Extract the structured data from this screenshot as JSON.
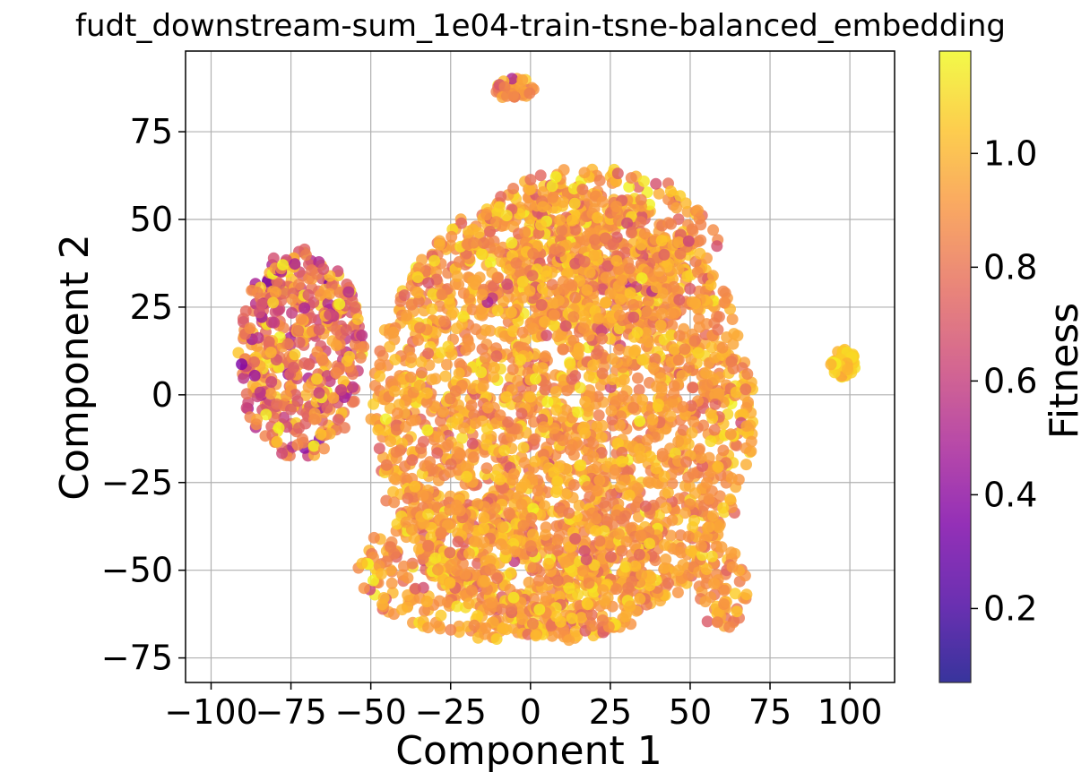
{
  "chart_data": {
    "type": "scatter",
    "title": "fudt_downstream-sum_1e04-train-tsne-balanced_embedding",
    "xlabel": "Component 1",
    "ylabel": "Component 2",
    "xlim": [
      -108,
      114
    ],
    "ylim": [
      -82,
      98
    ],
    "xticks": [
      -100,
      -75,
      -50,
      -25,
      0,
      25,
      50,
      75,
      100
    ],
    "xtick_labels": [
      "−100",
      "−75",
      "−50",
      "−25",
      "0",
      "25",
      "50",
      "75",
      "100"
    ],
    "yticks": [
      -75,
      -50,
      -25,
      0,
      25,
      50,
      75
    ],
    "ytick_labels": [
      "−75",
      "−50",
      "−25",
      "0",
      "25",
      "50",
      "75"
    ],
    "grid": true,
    "colorbar": {
      "label": "Fitness",
      "colormap": "plasma",
      "range": [
        0.07,
        1.18
      ],
      "ticks": [
        0.2,
        0.4,
        0.6,
        0.8,
        1.0
      ],
      "tick_labels": [
        "0.2",
        "0.4",
        "0.6",
        "0.8",
        "1.0"
      ]
    },
    "clusters": [
      {
        "cx": 10,
        "cy": -5,
        "rx": 60,
        "ry": 65,
        "n": 2600,
        "fit_mean": 0.93,
        "fit_sd": 0.1
      },
      {
        "cx": -5,
        "cy": -50,
        "rx": 50,
        "ry": 20,
        "n": 450,
        "fit_mean": 0.93,
        "fit_sd": 0.1
      },
      {
        "cx": 20,
        "cy": 40,
        "rx": 40,
        "ry": 25,
        "n": 400,
        "fit_mean": 0.92,
        "fit_sd": 0.12
      },
      {
        "cx": -72,
        "cy": 12,
        "rx": 20,
        "ry": 30,
        "n": 480,
        "fit_mean": 0.8,
        "fit_sd": 0.18
      },
      {
        "cx": -5,
        "cy": 87,
        "rx": 6,
        "ry": 3.5,
        "n": 40,
        "fit_mean": 0.85,
        "fit_sd": 0.12
      },
      {
        "cx": 98,
        "cy": 9,
        "rx": 4,
        "ry": 4,
        "n": 70,
        "fit_mean": 1.05,
        "fit_sd": 0.05
      },
      {
        "cx": 60,
        "cy": -55,
        "rx": 8,
        "ry": 12,
        "n": 60,
        "fit_mean": 0.9,
        "fit_sd": 0.1
      }
    ]
  }
}
